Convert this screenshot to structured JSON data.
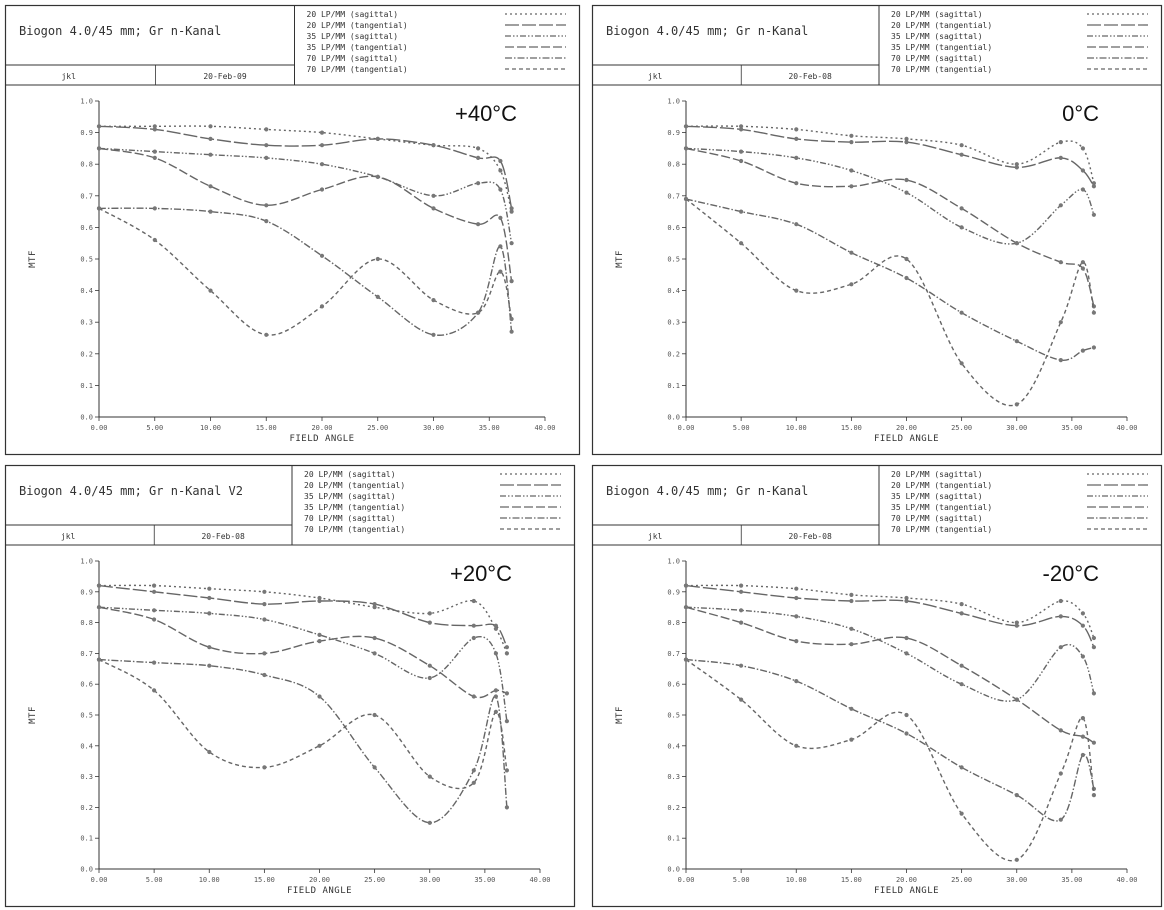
{
  "charts": [
    {
      "title": "Biogon 4.0/45 mm; Gr n-Kanal",
      "author": "jkl",
      "date": "20-Feb-09",
      "temp_label": "+40°C",
      "legend": [
        "20 LP/MM (sagittal)",
        "20 LP/MM (tangential)",
        "35 LP/MM (sagittal)",
        "35 LP/MM (tangential)",
        "70 LP/MM (sagittal)",
        "70 LP/MM (tangential)"
      ],
      "xlabel": "FIELD ANGLE",
      "ylabel": "MTF",
      "x_tick_labels": [
        "0.00",
        "5.00",
        "10.00",
        "15.00",
        "20.00",
        "25.00",
        "30.00",
        "35.00",
        "40.00"
      ],
      "y_tick_labels": [
        "0.0",
        "0.1",
        "0.2",
        "0.3",
        "0.4",
        "0.5",
        "0.6",
        "0.7",
        "0.8",
        "0.9",
        "1.0"
      ]
    },
    {
      "title": "Biogon 4.0/45 mm; Gr n-Kanal",
      "author": "jkl",
      "date": "20-Feb-08",
      "temp_label": "0°C",
      "legend": [
        "20 LP/MM (sagittal)",
        "20 LP/MM (tangential)",
        "35 LP/MM (sagittal)",
        "35 LP/MM (tangential)",
        "70 LP/MM (sagittal)",
        "70 LP/MM (tangential)"
      ],
      "xlabel": "FIELD ANGLE",
      "ylabel": "MTF",
      "x_tick_labels": [
        "0.00",
        "5.00",
        "10.00",
        "15.00",
        "20.00",
        "25.00",
        "30.00",
        "35.00",
        "40.00"
      ],
      "y_tick_labels": [
        "0.0",
        "0.1",
        "0.2",
        "0.3",
        "0.4",
        "0.5",
        "0.6",
        "0.7",
        "0.8",
        "0.9",
        "1.0"
      ]
    },
    {
      "title": "Biogon 4.0/45 mm; Gr n-Kanal V2",
      "author": "jkl",
      "date": "20-Feb-08",
      "temp_label": "+20°C",
      "legend": [
        "20 LP/MM (sagittal)",
        "20 LP/MM (tangential)",
        "35 LP/MM (sagittal)",
        "35 LP/MM (tangential)",
        "70 LP/MM (sagittal)",
        "70 LP/MM (tangential)"
      ],
      "xlabel": "FIELD ANGLE",
      "ylabel": "MTF",
      "x_tick_labels": [
        "0.00",
        "5.00",
        "10.00",
        "15.00",
        "20.00",
        "25.00",
        "30.00",
        "35.00",
        "40.00"
      ],
      "y_tick_labels": [
        "0.0",
        "0.1",
        "0.2",
        "0.3",
        "0.4",
        "0.5",
        "0.6",
        "0.7",
        "0.8",
        "0.9",
        "1.0"
      ]
    },
    {
      "title": "Biogon 4.0/45 mm; Gr n-Kanal",
      "author": "jkl",
      "date": "20-Feb-08",
      "temp_label": "-20°C",
      "legend": [
        "20 LP/MM (sagittal)",
        "20 LP/MM (tangential)",
        "35 LP/MM (sagittal)",
        "35 LP/MM (tangential)",
        "70 LP/MM (sagittal)",
        "70 LP/MM (tangential)"
      ],
      "xlabel": "FIELD ANGLE",
      "ylabel": "MTF",
      "x_tick_labels": [
        "0.00",
        "5.00",
        "10.00",
        "15.00",
        "20.00",
        "25.00",
        "30.00",
        "35.00",
        "40.00"
      ],
      "y_tick_labels": [
        "0.0",
        "0.1",
        "0.2",
        "0.3",
        "0.4",
        "0.5",
        "0.6",
        "0.7",
        "0.8",
        "0.9",
        "1.0"
      ]
    }
  ],
  "chart_data": [
    {
      "type": "line",
      "title": "Biogon 4.0/45 mm; Gr n-Kanal",
      "xlabel": "FIELD ANGLE",
      "ylabel": "MTF",
      "xlim": [
        0,
        40
      ],
      "ylim": [
        0,
        1.0
      ],
      "x": [
        0,
        5,
        10,
        15,
        20,
        25,
        30,
        34,
        36,
        37
      ],
      "series": [
        {
          "name": "20 LP/MM (sagittal)",
          "values": [
            0.92,
            0.92,
            0.92,
            0.91,
            0.9,
            0.88,
            0.86,
            0.85,
            0.78,
            0.65
          ]
        },
        {
          "name": "20 LP/MM (tangential)",
          "values": [
            0.92,
            0.91,
            0.88,
            0.86,
            0.86,
            0.88,
            0.86,
            0.82,
            0.81,
            0.66
          ]
        },
        {
          "name": "35 LP/MM (sagittal)",
          "values": [
            0.85,
            0.84,
            0.83,
            0.82,
            0.8,
            0.76,
            0.7,
            0.74,
            0.72,
            0.55
          ]
        },
        {
          "name": "35 LP/MM (tangential)",
          "values": [
            0.85,
            0.82,
            0.73,
            0.67,
            0.72,
            0.76,
            0.66,
            0.61,
            0.63,
            0.43
          ]
        },
        {
          "name": "70 LP/MM (sagittal)",
          "values": [
            0.66,
            0.66,
            0.65,
            0.62,
            0.51,
            0.38,
            0.26,
            0.33,
            0.54,
            0.27
          ]
        },
        {
          "name": "70 LP/MM (tangential)",
          "values": [
            0.66,
            0.56,
            0.4,
            0.26,
            0.35,
            0.5,
            0.37,
            0.33,
            0.46,
            0.31
          ]
        }
      ]
    },
    {
      "type": "line",
      "title": "Biogon 4.0/45 mm; Gr n-Kanal",
      "xlabel": "FIELD ANGLE",
      "ylabel": "MTF",
      "xlim": [
        0,
        40
      ],
      "ylim": [
        0,
        1.0
      ],
      "x": [
        0,
        5,
        10,
        15,
        20,
        25,
        30,
        34,
        36,
        37
      ],
      "series": [
        {
          "name": "20 LP/MM (sagittal)",
          "values": [
            0.92,
            0.92,
            0.91,
            0.89,
            0.88,
            0.86,
            0.8,
            0.87,
            0.85,
            0.74
          ]
        },
        {
          "name": "20 LP/MM (tangential)",
          "values": [
            0.92,
            0.91,
            0.88,
            0.87,
            0.87,
            0.83,
            0.79,
            0.82,
            0.78,
            0.73
          ]
        },
        {
          "name": "35 LP/MM (sagittal)",
          "values": [
            0.85,
            0.84,
            0.82,
            0.78,
            0.71,
            0.6,
            0.55,
            0.67,
            0.72,
            0.64
          ]
        },
        {
          "name": "35 LP/MM (tangential)",
          "values": [
            0.85,
            0.81,
            0.74,
            0.73,
            0.75,
            0.66,
            0.55,
            0.49,
            0.47,
            0.35
          ]
        },
        {
          "name": "70 LP/MM (sagittal)",
          "values": [
            0.69,
            0.65,
            0.61,
            0.52,
            0.44,
            0.33,
            0.24,
            0.18,
            0.21,
            0.22
          ]
        },
        {
          "name": "70 LP/MM (tangential)",
          "values": [
            0.69,
            0.55,
            0.4,
            0.42,
            0.5,
            0.17,
            0.04,
            0.3,
            0.49,
            0.33
          ]
        }
      ]
    },
    {
      "type": "line",
      "title": "Biogon 4.0/45 mm; Gr n-Kanal V2",
      "xlabel": "FIELD ANGLE",
      "ylabel": "MTF",
      "xlim": [
        0,
        40
      ],
      "ylim": [
        0,
        1.0
      ],
      "x": [
        0,
        5,
        10,
        15,
        20,
        25,
        30,
        34,
        36,
        37
      ],
      "series": [
        {
          "name": "20 LP/MM (sagittal)",
          "values": [
            0.92,
            0.92,
            0.91,
            0.9,
            0.88,
            0.85,
            0.83,
            0.87,
            0.78,
            0.7
          ]
        },
        {
          "name": "20 LP/MM (tangential)",
          "values": [
            0.92,
            0.9,
            0.88,
            0.86,
            0.87,
            0.86,
            0.8,
            0.79,
            0.79,
            0.72
          ]
        },
        {
          "name": "35 LP/MM (sagittal)",
          "values": [
            0.85,
            0.84,
            0.83,
            0.81,
            0.76,
            0.7,
            0.62,
            0.75,
            0.7,
            0.48
          ]
        },
        {
          "name": "35 LP/MM (tangential)",
          "values": [
            0.85,
            0.81,
            0.72,
            0.7,
            0.74,
            0.75,
            0.66,
            0.56,
            0.58,
            0.57
          ]
        },
        {
          "name": "70 LP/MM (sagittal)",
          "values": [
            0.68,
            0.67,
            0.66,
            0.63,
            0.56,
            0.33,
            0.15,
            0.32,
            0.56,
            0.2
          ]
        },
        {
          "name": "70 LP/MM (tangential)",
          "values": [
            0.68,
            0.58,
            0.38,
            0.33,
            0.4,
            0.5,
            0.3,
            0.28,
            0.51,
            0.32
          ]
        }
      ]
    },
    {
      "type": "line",
      "title": "Biogon 4.0/45 mm; Gr n-Kanal",
      "xlabel": "FIELD ANGLE",
      "ylabel": "MTF",
      "xlim": [
        0,
        40
      ],
      "ylim": [
        0,
        1.0
      ],
      "x": [
        0,
        5,
        10,
        15,
        20,
        25,
        30,
        34,
        36,
        37
      ],
      "series": [
        {
          "name": "20 LP/MM (sagittal)",
          "values": [
            0.92,
            0.92,
            0.91,
            0.89,
            0.88,
            0.86,
            0.8,
            0.87,
            0.83,
            0.75
          ]
        },
        {
          "name": "20 LP/MM (tangential)",
          "values": [
            0.92,
            0.9,
            0.88,
            0.87,
            0.87,
            0.83,
            0.79,
            0.82,
            0.79,
            0.72
          ]
        },
        {
          "name": "35 LP/MM (sagittal)",
          "values": [
            0.85,
            0.84,
            0.82,
            0.78,
            0.7,
            0.6,
            0.55,
            0.72,
            0.69,
            0.57
          ]
        },
        {
          "name": "35 LP/MM (tangential)",
          "values": [
            0.85,
            0.8,
            0.74,
            0.73,
            0.75,
            0.66,
            0.55,
            0.45,
            0.43,
            0.41
          ]
        },
        {
          "name": "70 LP/MM (sagittal)",
          "values": [
            0.68,
            0.66,
            0.61,
            0.52,
            0.44,
            0.33,
            0.24,
            0.16,
            0.37,
            0.26
          ]
        },
        {
          "name": "70 LP/MM (tangential)",
          "values": [
            0.68,
            0.55,
            0.4,
            0.42,
            0.5,
            0.18,
            0.03,
            0.31,
            0.49,
            0.24
          ]
        }
      ]
    }
  ],
  "styles": {
    "line_color": "#666666",
    "frame_color": "#333333",
    "dashes": [
      "2,3",
      "14,3",
      "6,2,1.5,2,1.5,2",
      "9,3",
      "7,2,1.5,2",
      "4,3"
    ]
  }
}
